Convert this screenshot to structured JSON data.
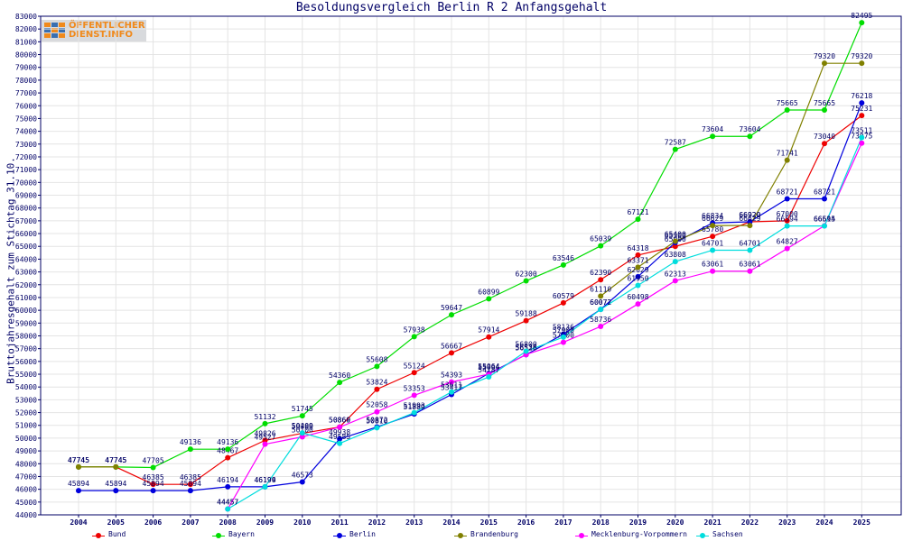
{
  "logo": {
    "line1": "ÖFFENTLICHER",
    "line2": "DIENST.INFO"
  },
  "chart_data": {
    "type": "line",
    "title": "Besoldungsvergleich Berlin R 2 Anfangsgehalt",
    "xlabel": "",
    "ylabel": "Bruttojahresgehalt zum Stichtag 31.10.",
    "x": [
      "2004",
      "2005",
      "2006",
      "2007",
      "2008",
      "2009",
      "2010",
      "2011",
      "2012",
      "2013",
      "2014",
      "2015",
      "2016",
      "2017",
      "2018",
      "2019",
      "2020",
      "2021",
      "2022",
      "2023",
      "2024",
      "2025"
    ],
    "ylim": [
      44000,
      83000
    ],
    "ytick_step": 1000,
    "grid": true,
    "legend_position": "bottom",
    "series": [
      {
        "name": "Bund",
        "color": "#ee0000",
        "values": [
          47745,
          47745,
          46385,
          46385,
          48467,
          49826,
          50380,
          50869,
          53824,
          55124,
          56667,
          57914,
          59188,
          60579,
          62390,
          64318,
          65000,
          65780,
          66920,
          67000,
          73040,
          75231
        ]
      },
      {
        "name": "Bayern",
        "color": "#00dd00",
        "values": [
          47745,
          47745,
          47705,
          49136,
          49136,
          51132,
          51745,
          54360,
          55608,
          57938,
          59647,
          60899,
          62300,
          63546,
          65039,
          67121,
          72587,
          73604,
          73604,
          75665,
          75665,
          82495
        ]
      },
      {
        "name": "Berlin",
        "color": "#0000dd",
        "values": [
          45894,
          45894,
          45894,
          45894,
          46194,
          46194,
          46573,
          49938,
          50872,
          51889,
          53417,
          55064,
          56526,
          58136,
          60072,
          62629,
          65300,
          66834,
          66920,
          68721,
          68721,
          76218
        ]
      },
      {
        "name": "Brandenburg",
        "color": "#808000",
        "values": [
          47745,
          47745,
          null,
          null,
          null,
          null,
          null,
          null,
          null,
          null,
          null,
          null,
          null,
          null,
          61110,
          63371,
          65400,
          66629,
          66629,
          71741,
          79320,
          79320
        ]
      },
      {
        "name": "Mecklenburg-Vorpommern",
        "color": "#ff00ff",
        "values": [
          null,
          null,
          null,
          null,
          44457,
          49527,
          50100,
          50860,
          52058,
          53353,
          54393,
          55004,
          56538,
          57500,
          58736,
          60498,
          62313,
          63061,
          63061,
          64827,
          66615,
          73075
        ]
      },
      {
        "name": "Sachsen",
        "color": "#00dddd",
        "values": [
          null,
          null,
          null,
          null,
          44457,
          46199,
          50409,
          49585,
          50810,
          51993,
          53611,
          54787,
          56800,
          57900,
          60072,
          61950,
          63808,
          64701,
          64701,
          66594,
          66594,
          73511
        ]
      }
    ]
  }
}
